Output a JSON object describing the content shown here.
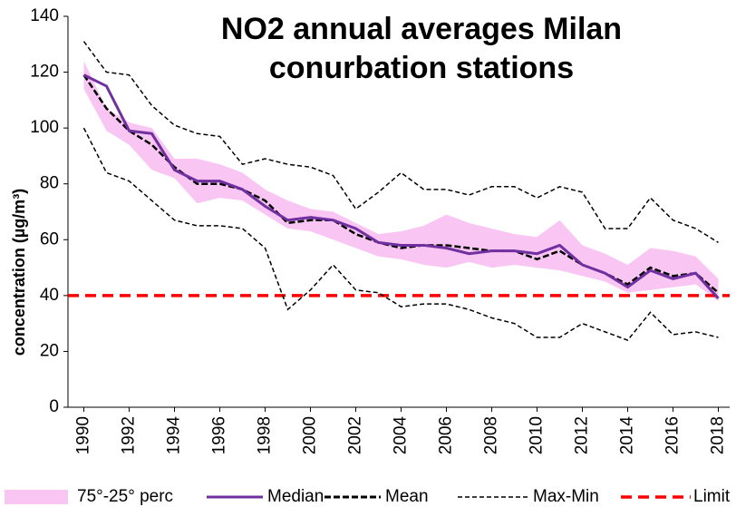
{
  "chart_data": {
    "type": "line",
    "title": [
      "NO2 annual averages Milan",
      "conurbation stations"
    ],
    "y_label": "concentration (µg/m³)",
    "x": [
      1990,
      1991,
      1992,
      1993,
      1994,
      1995,
      1996,
      1997,
      1998,
      1999,
      2000,
      2001,
      2002,
      2003,
      2004,
      2005,
      2006,
      2007,
      2008,
      2009,
      2010,
      2011,
      2012,
      2013,
      2014,
      2015,
      2016,
      2017,
      2018
    ],
    "xlim": [
      1989.3,
      2018.5
    ],
    "xticks": [
      1990,
      1992,
      1994,
      1996,
      1998,
      2000,
      2002,
      2004,
      2006,
      2008,
      2010,
      2012,
      2014,
      2016,
      2018
    ],
    "ylim": [
      0,
      140
    ],
    "yticks": [
      0,
      20,
      40,
      60,
      80,
      100,
      120,
      140
    ],
    "band": {
      "name": "75°-25° perc",
      "color": "#f9c6f4",
      "upper": [
        124,
        107,
        102,
        100,
        89,
        89,
        87,
        84,
        78,
        74,
        71,
        70,
        66,
        62,
        63,
        65,
        69,
        66,
        64,
        62,
        61,
        67,
        58,
        55,
        51,
        57,
        56,
        54,
        46
      ],
      "lower": [
        114,
        99,
        94,
        85,
        82,
        73,
        75,
        74,
        69,
        64,
        63,
        60,
        57,
        54,
        53,
        51,
        50,
        52,
        50,
        51,
        50,
        49,
        47,
        45,
        41,
        42,
        43,
        44,
        38
      ]
    },
    "median": {
      "name": "Median",
      "color": "#7030a0",
      "values": [
        119,
        115,
        99,
        98,
        85,
        81,
        81,
        78,
        72,
        67,
        68,
        67,
        64,
        59,
        58,
        58,
        57,
        55,
        56,
        56,
        55,
        58,
        51,
        48,
        43,
        49,
        46,
        48,
        39
      ]
    },
    "mean": {
      "name": "Mean",
      "color": "#000000",
      "values": [
        119,
        107,
        99,
        94,
        86,
        80,
        80,
        78,
        74,
        66,
        67,
        67,
        62,
        59,
        57,
        58,
        58,
        57,
        56,
        56,
        53,
        56,
        51,
        48,
        44,
        50,
        47,
        48,
        41
      ]
    },
    "maxmin": {
      "name": "Max-Min",
      "color": "#000000",
      "max": [
        131,
        120,
        119,
        108,
        101,
        98,
        97,
        87,
        89,
        87,
        86,
        83,
        71,
        77,
        84,
        78,
        78,
        76,
        79,
        79,
        75,
        79,
        77,
        64,
        64,
        75,
        67,
        64,
        59
      ],
      "min": [
        100,
        84,
        81,
        74,
        67,
        65,
        65,
        64,
        57,
        35,
        42,
        51,
        42,
        41,
        36,
        37,
        37,
        35,
        32,
        30,
        25,
        25,
        30,
        27,
        24,
        34,
        26,
        27,
        25
      ]
    },
    "limit": {
      "name": "Limit",
      "color": "#ff0000",
      "value": 40
    }
  }
}
